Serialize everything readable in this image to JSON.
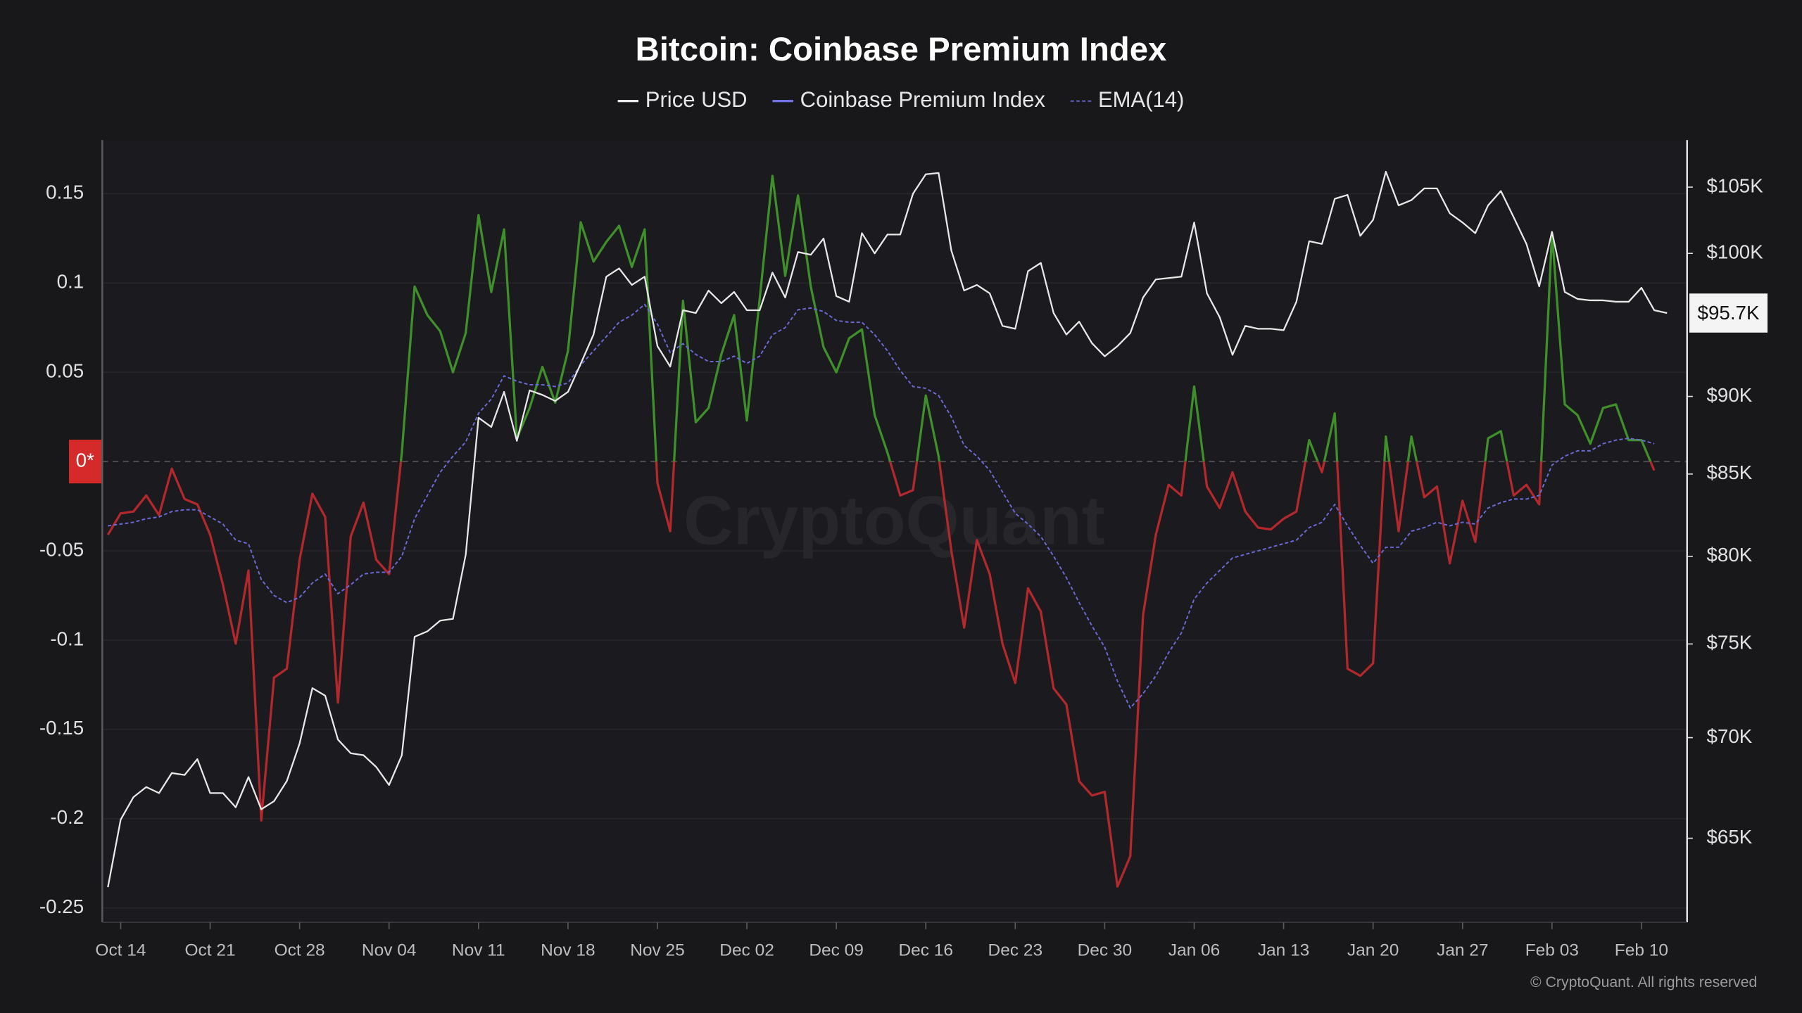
{
  "chart_data": {
    "type": "line",
    "title": "Bitcoin: Coinbase Premium Index",
    "watermark": "CryptoQuant",
    "credit": "© CryptoQuant. All rights reserved",
    "categories": [
      null,
      "Oct 14",
      null,
      null,
      null,
      null,
      null,
      null,
      "Oct 21",
      null,
      null,
      null,
      null,
      null,
      null,
      "Oct 28",
      null,
      null,
      null,
      null,
      null,
      null,
      "Nov 04",
      null,
      null,
      null,
      null,
      null,
      null,
      "Nov 11",
      null,
      null,
      null,
      null,
      null,
      null,
      "Nov 18",
      null,
      null,
      null,
      null,
      null,
      null,
      "Nov 25",
      null,
      null,
      null,
      null,
      null,
      null,
      "Dec 02",
      null,
      null,
      null,
      null,
      null,
      null,
      "Dec 09",
      null,
      null,
      null,
      null,
      null,
      null,
      "Dec 16",
      null,
      null,
      null,
      null,
      null,
      null,
      "Dec 23",
      null,
      null,
      null,
      null,
      null,
      null,
      "Dec 30",
      null,
      null,
      null,
      null,
      null,
      null,
      "Jan 06",
      null,
      null,
      null,
      null,
      null,
      null,
      "Jan 13",
      null,
      null,
      null,
      null,
      null,
      null,
      "Jan 20",
      null,
      null,
      null,
      null,
      null,
      null,
      "Jan 27",
      null,
      null,
      null,
      null,
      null,
      null,
      "Feb 03",
      null,
      null,
      null,
      null,
      null,
      null,
      "Feb 10",
      null,
      null
    ],
    "ylim": [
      -0.258,
      0.18
    ],
    "yticks": [
      -0.25,
      -0.2,
      -0.15,
      -0.1,
      -0.05,
      {
        "value": 0,
        "label": "0*"
      },
      0.05,
      0.1,
      0.15
    ],
    "y2lim": [
      61100,
      108700
    ],
    "y2log": true,
    "y2ticks": [
      {
        "value": 65000,
        "label": "$65K"
      },
      {
        "value": 70000,
        "label": "$70K"
      },
      {
        "value": 75000,
        "label": "$75K"
      },
      {
        "value": 80000,
        "label": "$80K"
      },
      {
        "value": 85000,
        "label": "$85K"
      },
      {
        "value": 90000,
        "label": "$90K"
      },
      {
        "value": 100000,
        "label": "$100K"
      },
      {
        "value": 105000,
        "label": "$105K"
      }
    ],
    "grid": true,
    "legend": "top",
    "series": [
      {
        "name": "Price USD",
        "color": "#e8e8e8",
        "axis": "y2",
        "current_label": "$95.7K",
        "values": [
          62700,
          65900,
          67000,
          67500,
          67200,
          68200,
          68100,
          68900,
          67200,
          67200,
          66500,
          68000,
          66400,
          66800,
          67800,
          69700,
          72600,
          72200,
          69900,
          69200,
          69100,
          68500,
          67600,
          69100,
          75400,
          75700,
          76300,
          76400,
          80100,
          88600,
          88000,
          90300,
          87100,
          90400,
          90100,
          89700,
          90300,
          92200,
          94200,
          98300,
          98900,
          97700,
          98300,
          93400,
          92000,
          95900,
          95700,
          97300,
          96400,
          97200,
          95900,
          95900,
          98600,
          96800,
          100100,
          99900,
          101100,
          96900,
          96500,
          101500,
          100000,
          101400,
          101400,
          104500,
          106000,
          106100,
          100200,
          97300,
          97700,
          97100,
          94800,
          94600,
          98700,
          99300,
          95700,
          94200,
          95100,
          93600,
          92700,
          93400,
          94300,
          96800,
          98100,
          98200,
          98300,
          102300,
          97100,
          95400,
          92800,
          94800,
          94600,
          94600,
          94500,
          96500,
          100900,
          100700,
          104100,
          104400,
          101300,
          102500,
          106200,
          103600,
          104000,
          104900,
          104900,
          103000,
          102300,
          101500,
          103600,
          104700,
          102700,
          100700,
          97600,
          101600,
          97200,
          96700,
          96600,
          96600,
          96500,
          96500,
          97500,
          95900,
          95700
        ]
      },
      {
        "name": "Coinbase Premium Index",
        "color": "#7272e6",
        "positive_color": "#3f8f2a",
        "negative_color": "#b3282d",
        "values": [
          -0.041,
          -0.029,
          -0.028,
          -0.019,
          -0.03,
          -0.004,
          -0.021,
          -0.024,
          -0.041,
          -0.069,
          -0.102,
          -0.061,
          -0.201,
          -0.121,
          -0.116,
          -0.055,
          -0.018,
          -0.031,
          -0.135,
          -0.042,
          -0.023,
          -0.055,
          -0.063,
          0.005,
          0.098,
          0.082,
          0.073,
          0.05,
          0.072,
          0.138,
          0.095,
          0.13,
          0.013,
          0.03,
          0.053,
          0.033,
          0.062,
          0.134,
          0.112,
          0.123,
          0.132,
          0.109,
          0.13,
          -0.012,
          -0.039,
          0.09,
          0.022,
          0.03,
          0.06,
          0.082,
          0.023,
          0.091,
          0.16,
          0.104,
          0.149,
          0.098,
          0.064,
          0.05,
          0.069,
          0.074,
          0.026,
          0.005,
          -0.019,
          -0.016,
          0.037,
          0.003,
          -0.05,
          -0.093,
          -0.044,
          -0.063,
          -0.102,
          -0.124,
          -0.071,
          -0.084,
          -0.127,
          -0.136,
          -0.179,
          -0.187,
          -0.185,
          -0.238,
          -0.221,
          -0.086,
          -0.041,
          -0.013,
          -0.019,
          0.042,
          -0.014,
          -0.026,
          -0.006,
          -0.028,
          -0.037,
          -0.038,
          -0.032,
          -0.028,
          0.012,
          -0.006,
          0.027,
          -0.116,
          -0.12,
          -0.113,
          0.014,
          -0.039,
          0.014,
          -0.02,
          -0.014,
          -0.057,
          -0.022,
          -0.045,
          0.013,
          0.017,
          -0.019,
          -0.013,
          -0.024,
          0.128,
          0.032,
          0.026,
          0.01,
          0.03,
          0.032,
          0.012,
          0.012,
          -0.005,
          null
        ]
      },
      {
        "name": "EMA(14)",
        "color": "#6a6ad8",
        "dashed": true,
        "values": [
          -0.036,
          -0.035,
          -0.034,
          -0.032,
          -0.031,
          -0.028,
          -0.027,
          -0.027,
          -0.031,
          -0.035,
          -0.044,
          -0.046,
          -0.066,
          -0.075,
          -0.079,
          -0.076,
          -0.068,
          -0.063,
          -0.074,
          -0.069,
          -0.063,
          -0.062,
          -0.062,
          -0.053,
          -0.032,
          -0.019,
          -0.006,
          0.003,
          0.011,
          0.027,
          0.035,
          0.048,
          0.045,
          0.043,
          0.043,
          0.042,
          0.044,
          0.054,
          0.062,
          0.07,
          0.078,
          0.082,
          0.088,
          0.077,
          0.061,
          0.066,
          0.06,
          0.056,
          0.056,
          0.059,
          0.055,
          0.059,
          0.071,
          0.075,
          0.085,
          0.086,
          0.084,
          0.079,
          0.078,
          0.078,
          0.071,
          0.062,
          0.051,
          0.042,
          0.041,
          0.037,
          0.025,
          0.009,
          0.003,
          -0.005,
          -0.017,
          -0.029,
          -0.035,
          -0.042,
          -0.053,
          -0.065,
          -0.079,
          -0.092,
          -0.104,
          -0.123,
          -0.138,
          -0.13,
          -0.12,
          -0.107,
          -0.096,
          -0.077,
          -0.068,
          -0.061,
          -0.054,
          -0.052,
          -0.05,
          -0.048,
          -0.046,
          -0.044,
          -0.037,
          -0.034,
          -0.024,
          -0.036,
          -0.047,
          -0.057,
          -0.048,
          -0.048,
          -0.039,
          -0.037,
          -0.034,
          -0.036,
          -0.034,
          -0.035,
          -0.026,
          -0.023,
          -0.021,
          -0.021,
          -0.019,
          -0.002,
          0.003,
          0.006,
          0.006,
          0.01,
          0.012,
          0.013,
          0.012,
          0.01,
          null
        ]
      }
    ]
  }
}
